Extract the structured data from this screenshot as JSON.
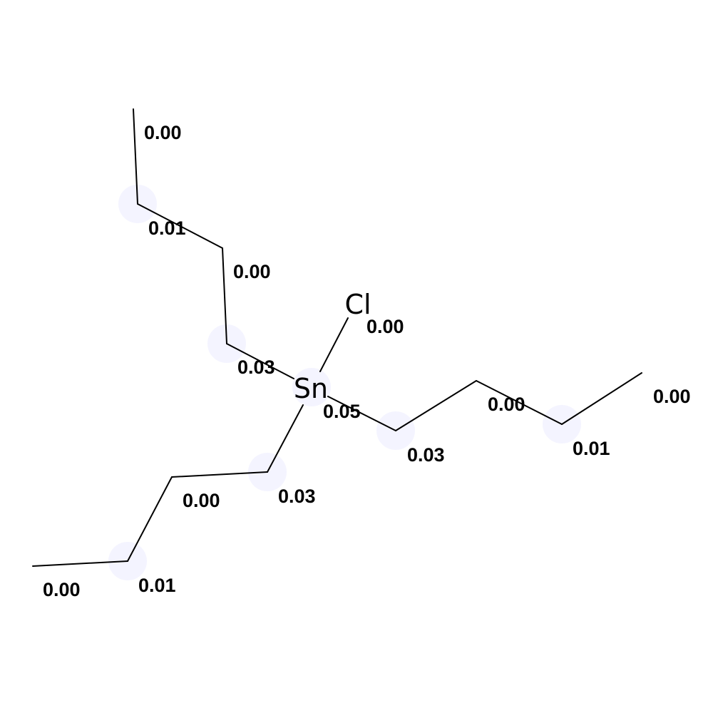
{
  "molecule": {
    "atoms": {
      "sn": {
        "symbol": "Sn",
        "value": "0.05"
      },
      "cl": {
        "symbol": "Cl",
        "value": "0.00"
      },
      "chain_a": [
        "0.03",
        "0.00",
        "0.01",
        "0.00"
      ],
      "chain_b": [
        "0.03",
        "0.00",
        "0.01",
        "0.00"
      ],
      "chain_c": [
        "0.03",
        "0.00",
        "0.01",
        "0.00"
      ]
    },
    "highlight_color": "#eeeeff",
    "bond_color": "#000000"
  }
}
